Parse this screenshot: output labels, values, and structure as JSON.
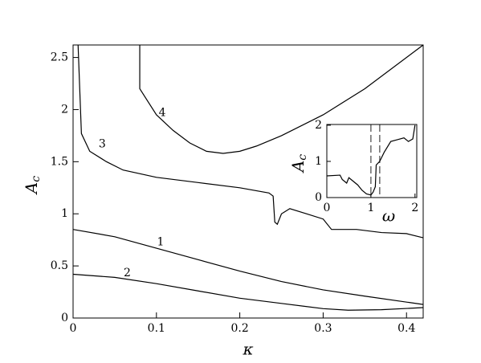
{
  "chart_data": [
    {
      "type": "line",
      "xlabel": "κ",
      "ylabel": {
        "main": "A",
        "sub": "c"
      },
      "xlim": [
        0,
        0.42
      ],
      "ylim": [
        0,
        2.62
      ],
      "xticks": [
        0,
        0.1,
        0.2,
        0.3,
        0.4
      ],
      "yticks": [
        0,
        0.5,
        1,
        1.5,
        2,
        2.5
      ],
      "series": [
        {
          "name": "1",
          "color": "#000000",
          "x": [
            0,
            0.05,
            0.1,
            0.15,
            0.2,
            0.25,
            0.3,
            0.35,
            0.42
          ],
          "values": [
            0.85,
            0.78,
            0.67,
            0.56,
            0.45,
            0.35,
            0.27,
            0.21,
            0.13
          ]
        },
        {
          "name": "2",
          "color": "#000000",
          "x": [
            0,
            0.05,
            0.1,
            0.15,
            0.2,
            0.25,
            0.3,
            0.33,
            0.37,
            0.42
          ],
          "values": [
            0.42,
            0.39,
            0.33,
            0.26,
            0.19,
            0.14,
            0.09,
            0.075,
            0.08,
            0.1
          ]
        },
        {
          "name": "3",
          "color": "#000000",
          "x": [
            0.006,
            0.01,
            0.02,
            0.04,
            0.06,
            0.1,
            0.15,
            0.2,
            0.235,
            0.24,
            0.242,
            0.245,
            0.25,
            0.26,
            0.28,
            0.3,
            0.31,
            0.34,
            0.37,
            0.4,
            0.42
          ],
          "values": [
            2.62,
            1.77,
            1.6,
            1.5,
            1.42,
            1.35,
            1.3,
            1.25,
            1.2,
            1.17,
            0.92,
            0.9,
            1.0,
            1.05,
            1.0,
            0.95,
            0.85,
            0.85,
            0.82,
            0.81,
            0.77
          ]
        },
        {
          "name": "4",
          "color": "#000000",
          "x": [
            0.08,
            0.08,
            0.1,
            0.12,
            0.14,
            0.16,
            0.18,
            0.2,
            0.22,
            0.25,
            0.3,
            0.35,
            0.42
          ],
          "values": [
            2.62,
            2.2,
            1.95,
            1.8,
            1.68,
            1.6,
            1.58,
            1.6,
            1.65,
            1.75,
            1.95,
            2.2,
            2.62
          ]
        }
      ]
    },
    {
      "type": "line",
      "xlabel": "ω",
      "ylabel": {
        "main": "A",
        "sub": "c"
      },
      "xlim": [
        0,
        2.04
      ],
      "ylim": [
        0,
        2.02
      ],
      "xticks": [
        0,
        1,
        2
      ],
      "yticks": [
        0,
        1,
        2
      ],
      "vlines": [
        1.0,
        1.2
      ],
      "series": [
        {
          "color": "#000000",
          "x": [
            0,
            0.3,
            0.35,
            0.45,
            0.5,
            0.55,
            0.7,
            0.8,
            0.9,
            1.0,
            1.05,
            1.1,
            1.12,
            1.2,
            1.3,
            1.45,
            1.6,
            1.75,
            1.85,
            1.95,
            2.0
          ],
          "values": [
            0.6,
            0.62,
            0.5,
            0.4,
            0.55,
            0.5,
            0.35,
            0.2,
            0.1,
            0.07,
            0.15,
            0.3,
            0.9,
            1.0,
            1.25,
            1.55,
            1.6,
            1.65,
            1.55,
            1.62,
            2.0
          ]
        }
      ]
    }
  ]
}
